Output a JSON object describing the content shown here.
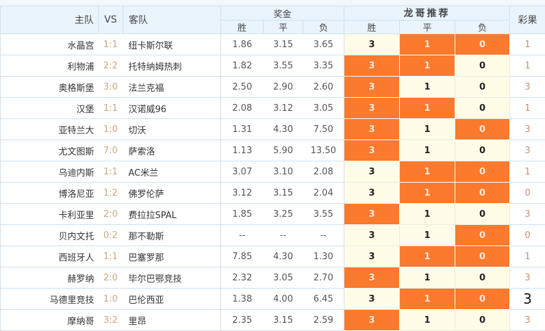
{
  "header": {
    "home": "主队",
    "vs": "VS",
    "away": "客队",
    "odds_group": "奖金",
    "recommend_group": "龙哥推荐",
    "result": "彩果",
    "win": "胜",
    "draw": "平",
    "lose": "负"
  },
  "colors": {
    "highlight": "#fb7a2e",
    "cell_bg": "#fffce8",
    "header_bg": "#eaf4fc"
  },
  "rows": [
    {
      "home": "水晶宫",
      "score": "1:1",
      "away": "纽卡斯尔联",
      "odds": [
        "1.86",
        "3.15",
        "3.65"
      ],
      "rec": [
        "3",
        "1",
        "0"
      ],
      "hl": [
        false,
        true,
        true
      ],
      "result": "1"
    },
    {
      "home": "利物浦",
      "score": "2:2",
      "away": "托特纳姆热刺",
      "odds": [
        "1.82",
        "3.55",
        "3.35"
      ],
      "rec": [
        "3",
        "1",
        "0"
      ],
      "hl": [
        true,
        true,
        false
      ],
      "result": "1"
    },
    {
      "home": "奥格斯堡",
      "score": "3:0",
      "away": "法兰克福",
      "odds": [
        "2.50",
        "2.90",
        "2.60"
      ],
      "rec": [
        "3",
        "1",
        "0"
      ],
      "hl": [
        true,
        false,
        false
      ],
      "result": "3"
    },
    {
      "home": "汉堡",
      "score": "1:1",
      "away": "汉诺威96",
      "odds": [
        "2.08",
        "3.12",
        "3.05"
      ],
      "rec": [
        "3",
        "1",
        "0"
      ],
      "hl": [
        true,
        true,
        false
      ],
      "result": "1"
    },
    {
      "home": "亚特兰大",
      "score": "1:0",
      "away": "切沃",
      "odds": [
        "1.31",
        "4.30",
        "7.50"
      ],
      "rec": [
        "3",
        "1",
        "0"
      ],
      "hl": [
        true,
        false,
        true
      ],
      "result": "3"
    },
    {
      "home": "尤文图斯",
      "score": "7:0",
      "away": "萨索洛",
      "odds": [
        "1.13",
        "5.90",
        "13.50"
      ],
      "rec": [
        "3",
        "1",
        "0"
      ],
      "hl": [
        true,
        false,
        false
      ],
      "result": "3"
    },
    {
      "home": "乌迪内斯",
      "score": "1:1",
      "away": "AC米兰",
      "odds": [
        "3.07",
        "3.10",
        "2.08"
      ],
      "rec": [
        "3",
        "1",
        "0"
      ],
      "hl": [
        false,
        true,
        true
      ],
      "result": "1"
    },
    {
      "home": "博洛尼亚",
      "score": "1:2",
      "away": "佛罗伦萨",
      "odds": [
        "3.12",
        "3.15",
        "2.04"
      ],
      "rec": [
        "3",
        "1",
        "0"
      ],
      "hl": [
        false,
        true,
        true
      ],
      "result": "0"
    },
    {
      "home": "卡利亚里",
      "score": "2:0",
      "away": "费拉拉SPAL",
      "odds": [
        "1.85",
        "3.25",
        "3.55"
      ],
      "rec": [
        "3",
        "1",
        "0"
      ],
      "hl": [
        true,
        false,
        false
      ],
      "result": "3"
    },
    {
      "home": "贝内文托",
      "score": "0:2",
      "away": "那不勒斯",
      "odds": [
        "--",
        "--",
        "--"
      ],
      "rec": [
        "3",
        "1",
        "0"
      ],
      "hl": [
        false,
        false,
        true
      ],
      "result": "0"
    },
    {
      "home": "西班牙人",
      "score": "1:1",
      "away": "巴塞罗那",
      "odds": [
        "7.85",
        "4.30",
        "1.30"
      ],
      "rec": [
        "3",
        "1",
        "0"
      ],
      "hl": [
        false,
        true,
        true
      ],
      "result": "1"
    },
    {
      "home": "赫罗纳",
      "score": "2:0",
      "away": "毕尔巴鄂竞技",
      "odds": [
        "2.32",
        "3.05",
        "2.70"
      ],
      "rec": [
        "3",
        "1",
        "0"
      ],
      "hl": [
        true,
        false,
        false
      ],
      "result": "3"
    },
    {
      "home": "马德里竞技",
      "score": "1:0",
      "away": "巴伦西亚",
      "odds": [
        "1.38",
        "4.00",
        "6.45"
      ],
      "rec": [
        "3",
        "1",
        "0"
      ],
      "hl": [
        false,
        true,
        true
      ],
      "result": "3",
      "result_emphasis": true
    },
    {
      "home": "摩纳哥",
      "score": "3:2",
      "away": "里昂",
      "odds": [
        "2.35",
        "3.15",
        "2.59"
      ],
      "rec": [
        "3",
        "1",
        "0"
      ],
      "hl": [
        true,
        false,
        false
      ],
      "result": "3"
    }
  ]
}
